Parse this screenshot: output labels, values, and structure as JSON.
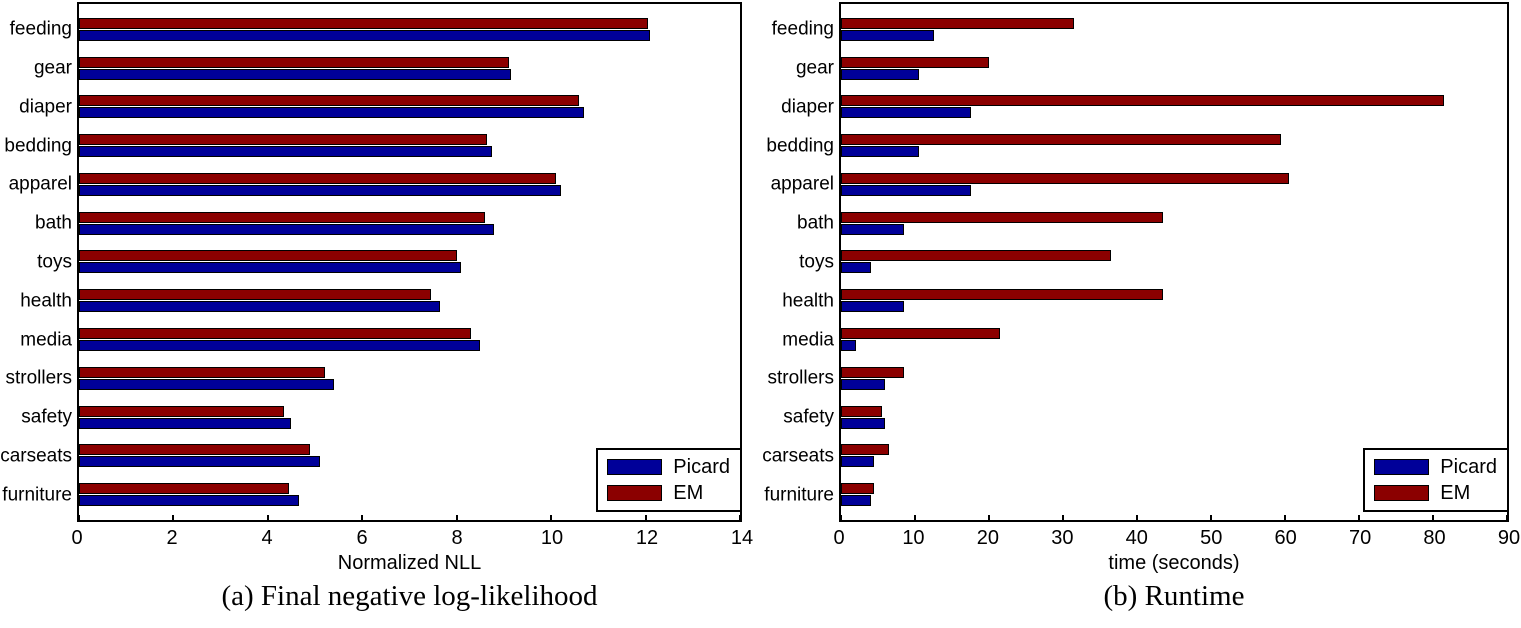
{
  "figure": {
    "background": "#ffffff",
    "colors": {
      "picard": "#000099",
      "em": "#8B0000",
      "axis": "#000000"
    },
    "legend": {
      "position": "bottom-right",
      "items": [
        {
          "label": "Picard",
          "color_key": "picard"
        },
        {
          "label": "EM",
          "color_key": "em"
        }
      ]
    }
  },
  "chart_data": [
    {
      "type": "bar",
      "orientation": "horizontal",
      "caption": "(a) Final negative log-likelihood",
      "xlabel": "Normalized NLL",
      "xlim": [
        0,
        14
      ],
      "xticks": [
        0,
        2,
        4,
        6,
        8,
        10,
        12,
        14
      ],
      "grid": false,
      "legend_position": "bottom-right",
      "categories": [
        "feeding",
        "gear",
        "diaper",
        "bedding",
        "apparel",
        "bath",
        "toys",
        "health",
        "media",
        "strollers",
        "safety",
        "carseats",
        "furniture"
      ],
      "series": [
        {
          "name": "EM",
          "color": "#8B0000",
          "values": [
            12.05,
            9.1,
            10.6,
            8.65,
            10.1,
            8.6,
            8.0,
            7.45,
            8.3,
            5.2,
            4.35,
            4.9,
            4.45
          ]
        },
        {
          "name": "Picard",
          "color": "#000099",
          "values": [
            12.1,
            9.15,
            10.7,
            8.75,
            10.2,
            8.8,
            8.1,
            7.65,
            8.5,
            5.4,
            4.5,
            5.1,
            4.65
          ]
        }
      ]
    },
    {
      "type": "bar",
      "orientation": "horizontal",
      "caption": "(b) Runtime",
      "xlabel": "time (seconds)",
      "xlim": [
        0,
        90
      ],
      "xticks": [
        0,
        10,
        20,
        30,
        40,
        50,
        60,
        70,
        80,
        90
      ],
      "grid": false,
      "legend_position": "bottom-right",
      "categories": [
        "feeding",
        "gear",
        "diaper",
        "bedding",
        "apparel",
        "bath",
        "toys",
        "health",
        "media",
        "strollers",
        "safety",
        "carseats",
        "furniture"
      ],
      "series": [
        {
          "name": "EM",
          "color": "#8B0000",
          "values": [
            31.5,
            20.0,
            81.5,
            59.5,
            60.5,
            43.5,
            36.5,
            43.5,
            21.5,
            8.5,
            5.5,
            6.5,
            4.5
          ]
        },
        {
          "name": "Picard",
          "color": "#000099",
          "values": [
            12.5,
            10.5,
            17.5,
            10.5,
            17.5,
            8.5,
            4.0,
            8.5,
            2.0,
            6.0,
            6.0,
            4.5,
            4.0
          ]
        }
      ]
    }
  ]
}
